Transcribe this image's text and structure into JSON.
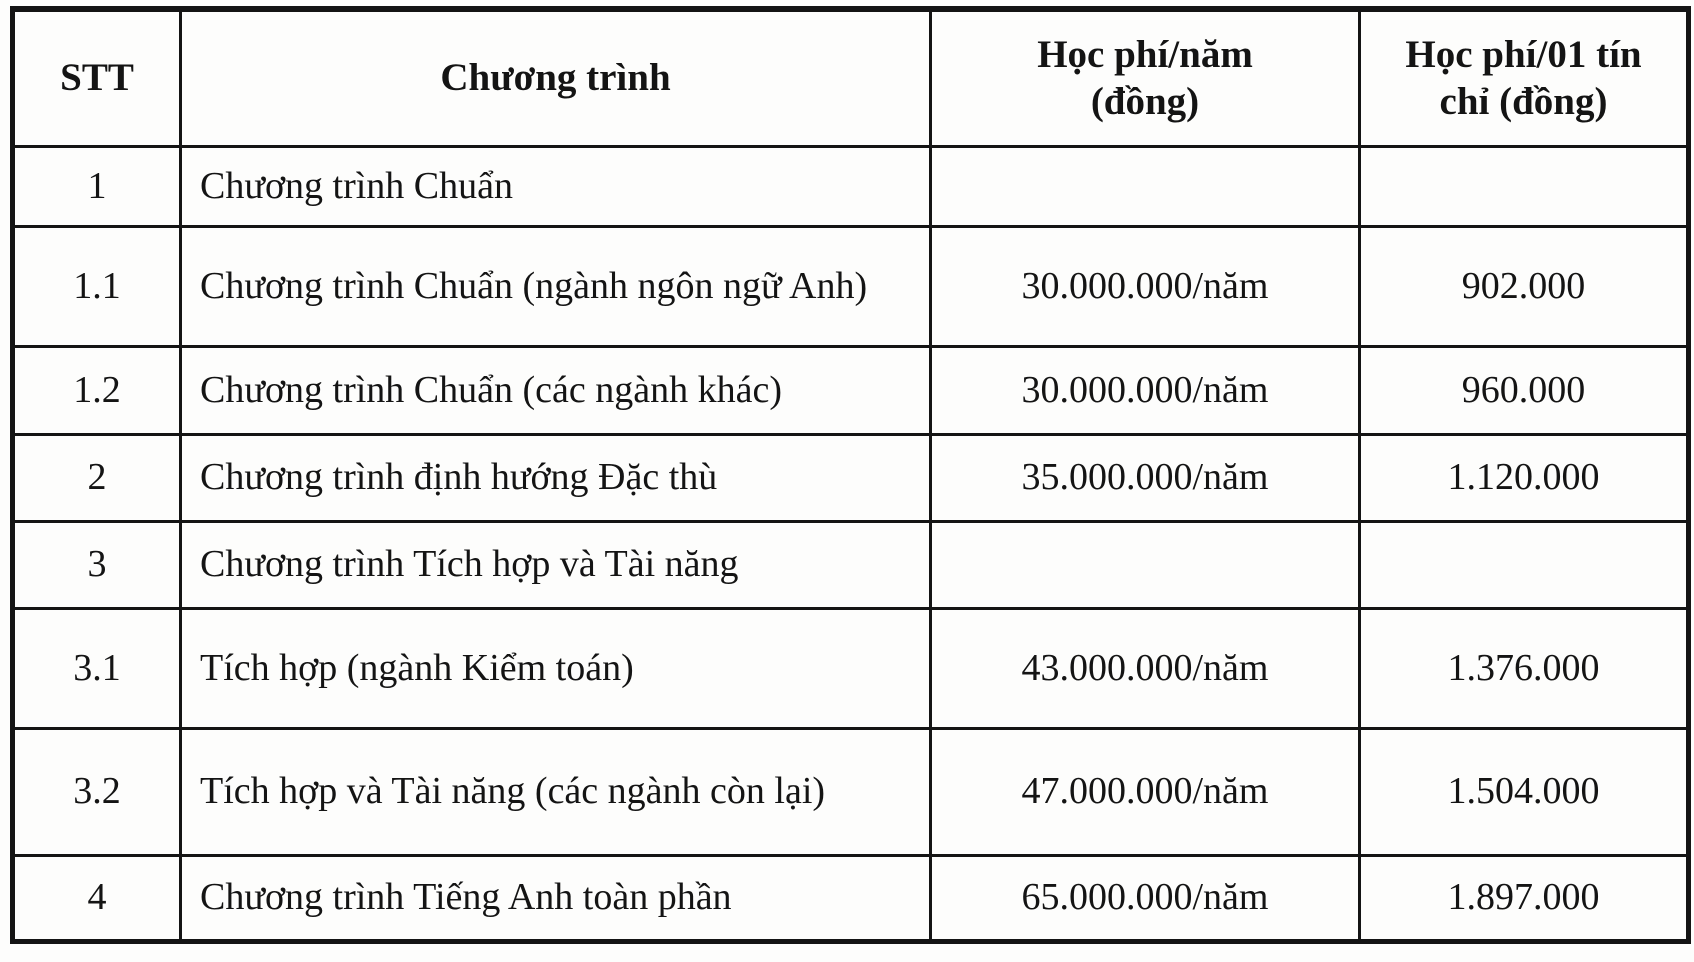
{
  "colors": {
    "background": "#fdfdfc",
    "border": "#141414",
    "text": "#141414"
  },
  "table": {
    "columns": [
      {
        "label": "STT"
      },
      {
        "label": "Chương trình"
      },
      {
        "label": "Học phí/năm (đồng)",
        "label_line1": "Học phí/năm",
        "label_line2": "(đồng)"
      },
      {
        "label": "Học phí/01 tín chỉ (đồng)",
        "label_line1": "Học phí/01 tín",
        "label_line2": "chỉ (đồng)"
      }
    ],
    "rows": [
      {
        "stt": "1",
        "program": "Chương trình Chuẩn",
        "fee_year": "",
        "fee_credit": ""
      },
      {
        "stt": "1.1",
        "program": "Chương trình Chuẩn (ngành ngôn ngữ Anh)",
        "fee_year": "30.000.000/năm",
        "fee_credit": "902.000"
      },
      {
        "stt": "1.2",
        "program": "Chương trình Chuẩn (các ngành khác)",
        "fee_year": "30.000.000/năm",
        "fee_credit": "960.000"
      },
      {
        "stt": "2",
        "program": "Chương trình định hướng Đặc thù",
        "fee_year": "35.000.000/năm",
        "fee_credit": "1.120.000"
      },
      {
        "stt": "3",
        "program": "Chương trình Tích hợp và Tài năng",
        "fee_year": "",
        "fee_credit": ""
      },
      {
        "stt": "3.1",
        "program": "Tích hợp (ngành Kiểm toán)",
        "fee_year": "43.000.000/năm",
        "fee_credit": "1.376.000"
      },
      {
        "stt": "3.2",
        "program": "Tích hợp và Tài năng (các ngành còn lại)",
        "fee_year": "47.000.000/năm",
        "fee_credit": "1.504.000"
      },
      {
        "stt": "4",
        "program": "Chương trình Tiếng Anh toàn phần",
        "fee_year": "65.000.000/năm",
        "fee_credit": "1.897.000"
      }
    ]
  }
}
